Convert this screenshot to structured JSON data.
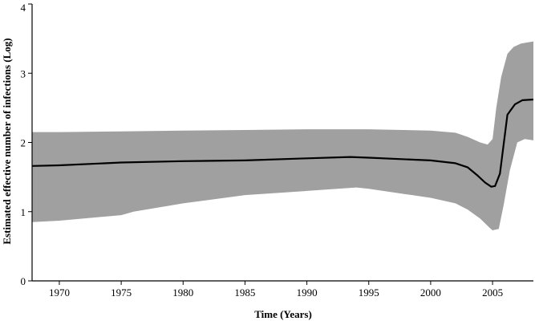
{
  "chart_data": {
    "type": "area",
    "xlabel": "Time (Years)",
    "ylabel": "Estimated effective number of infections (Log)",
    "xlim": [
      1967.8,
      2008.3
    ],
    "ylim": [
      0,
      4
    ],
    "x_ticks": [
      1970,
      1975,
      1980,
      1985,
      1990,
      1995,
      2000,
      2005
    ],
    "x_tick_labels": [
      "1970",
      "1975",
      "1980",
      "1985",
      "1990",
      "1995",
      "2000",
      "2005"
    ],
    "y_ticks": [
      0,
      1,
      2,
      3,
      4
    ],
    "y_tick_labels": [
      "0",
      "1",
      "2",
      "3",
      "4"
    ],
    "grid": false,
    "colors": {
      "band": "#a0a0a0",
      "median": "#000000",
      "axis": "#000000"
    },
    "series": [
      {
        "role": "median",
        "x": [
          1967.8,
          1970,
          1975,
          1980,
          1985,
          1990,
          1993.5,
          1995,
          2000,
          2002,
          2003,
          2003.8,
          2004.4,
          2004.9,
          2005.2,
          2005.6,
          2006.2,
          2006.8,
          2007.4,
          2008.3
        ],
        "y": [
          1.66,
          1.67,
          1.71,
          1.73,
          1.74,
          1.77,
          1.79,
          1.78,
          1.74,
          1.7,
          1.64,
          1.52,
          1.42,
          1.36,
          1.37,
          1.55,
          2.4,
          2.55,
          2.61,
          2.62
        ]
      },
      {
        "role": "upper",
        "x": [
          1967.8,
          1970,
          1975,
          1980,
          1985,
          1990,
          1995,
          2000,
          2002,
          2003,
          2004,
          2004.6,
          2005.0,
          2005.3,
          2005.7,
          2006.2,
          2006.7,
          2007.3,
          2008.3
        ],
        "y": [
          2.15,
          2.15,
          2.16,
          2.17,
          2.18,
          2.19,
          2.19,
          2.17,
          2.14,
          2.08,
          2.0,
          1.97,
          2.05,
          2.5,
          2.95,
          3.28,
          3.38,
          3.43,
          3.46
        ]
      },
      {
        "role": "lower",
        "x": [
          1967.8,
          1970,
          1975,
          1976,
          1980,
          1985,
          1990,
          1994,
          1995,
          2000,
          2002,
          2003,
          2004,
          2004.8,
          2005.0,
          2005.5,
          2005.9,
          2006.4,
          2007.0,
          2007.6,
          2008.3
        ],
        "y": [
          0.85,
          0.87,
          0.95,
          1.0,
          1.12,
          1.24,
          1.3,
          1.35,
          1.33,
          1.2,
          1.12,
          1.03,
          0.9,
          0.76,
          0.73,
          0.75,
          1.1,
          1.6,
          2.0,
          2.05,
          2.03
        ]
      }
    ]
  }
}
